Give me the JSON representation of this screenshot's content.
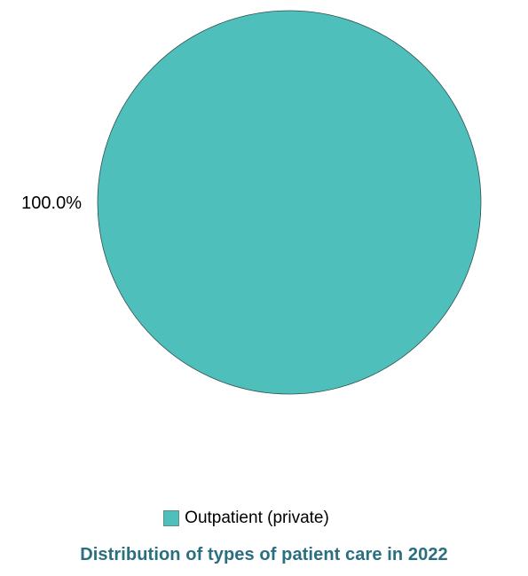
{
  "chart_data": {
    "type": "pie",
    "title": "Distribution of types of patient care in 2022",
    "slices": [
      {
        "label": "Outpatient (private)",
        "value": 100.0,
        "value_label": "100.0%",
        "color": "#4fbfbc"
      }
    ],
    "legend_position": "bottom",
    "slice_outline_color": "#2f4f4f"
  }
}
